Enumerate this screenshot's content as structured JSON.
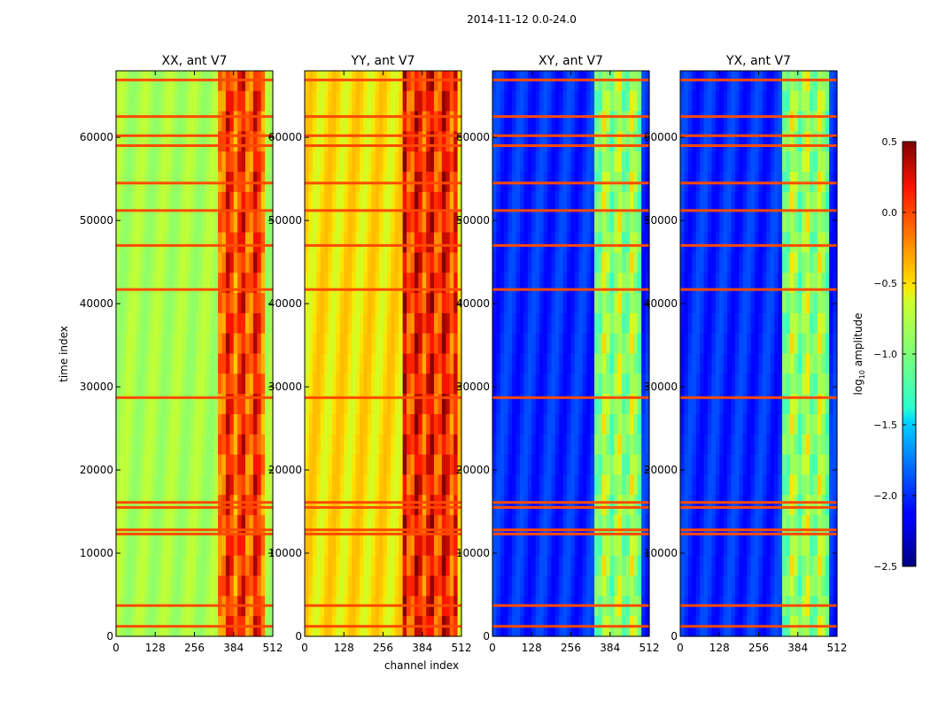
{
  "figure": {
    "suptitle": "2014-11-12 0.0-24.0",
    "xlabel": "channel index",
    "ylabel": "time index",
    "colorbar_label": "log",
    "colorbar_label_sub": "10",
    "colorbar_label_tail": " amplitude"
  },
  "chart_data": [
    {
      "type": "heatmap",
      "title": "XX, ant V7",
      "colormap": "jet",
      "xlim": [
        0,
        512
      ],
      "ylim": [
        0,
        68000
      ],
      "xticks": [
        0,
        128,
        256,
        384,
        512
      ],
      "yticks": [
        0,
        10000,
        20000,
        30000,
        40000,
        50000,
        60000
      ],
      "base_log_amplitude": -0.8,
      "active_channel_range": [
        330,
        480
      ],
      "active_log_amplitude": 0.0,
      "flagged_time_rows": [
        1200,
        3700,
        12300,
        12800,
        15500,
        16100,
        28700,
        41700,
        47000,
        51200,
        54500,
        59000,
        60200,
        62500,
        66900
      ]
    },
    {
      "type": "heatmap",
      "title": "YY, ant V7",
      "colormap": "jet",
      "xlim": [
        0,
        512
      ],
      "ylim": [
        0,
        68000
      ],
      "xticks": [
        0,
        128,
        256,
        384,
        512
      ],
      "yticks": [
        0,
        10000,
        20000,
        30000,
        40000,
        50000,
        60000
      ],
      "base_log_amplitude": -0.5,
      "active_channel_range": [
        325,
        500
      ],
      "active_log_amplitude": 0.1,
      "flagged_time_rows": [
        1200,
        3700,
        12300,
        12800,
        15500,
        16100,
        28700,
        41700,
        47000,
        51200,
        54500,
        59000,
        60200,
        62500,
        66900
      ]
    },
    {
      "type": "heatmap",
      "title": "XY, ant V7",
      "colormap": "jet",
      "xlim": [
        0,
        512
      ],
      "ylim": [
        0,
        68000
      ],
      "xticks": [
        0,
        128,
        256,
        384,
        512
      ],
      "yticks": [
        0,
        10000,
        20000,
        30000,
        40000,
        50000,
        60000
      ],
      "base_log_amplitude": -2.0,
      "active_channel_range": [
        330,
        490
      ],
      "active_log_amplitude": -0.9,
      "flagged_time_rows": [
        1200,
        3700,
        12300,
        12800,
        15500,
        16100,
        28700,
        41700,
        47000,
        51200,
        54500,
        59000,
        60200,
        62500,
        66900
      ]
    },
    {
      "type": "heatmap",
      "title": "YX, ant V7",
      "colormap": "jet",
      "xlim": [
        0,
        512
      ],
      "ylim": [
        0,
        68000
      ],
      "xticks": [
        0,
        128,
        256,
        384,
        512
      ],
      "yticks": [
        0,
        10000,
        20000,
        30000,
        40000,
        50000,
        60000
      ],
      "base_log_amplitude": -2.0,
      "active_channel_range": [
        330,
        490
      ],
      "active_log_amplitude": -0.9,
      "flagged_time_rows": [
        1200,
        3700,
        12300,
        12800,
        15500,
        16100,
        28700,
        41700,
        47000,
        51200,
        54500,
        59000,
        60200,
        62500,
        66900
      ]
    }
  ],
  "colorbar": {
    "colormap": "jet",
    "range": [
      -2.5,
      0.5
    ],
    "ticks": [
      0.5,
      0.0,
      -0.5,
      -1.0,
      -1.5,
      -2.0,
      -2.5
    ],
    "tick_labels": [
      "0.5",
      "0.0",
      "−0.5",
      "−1.0",
      "−1.5",
      "−2.0",
      "−2.5"
    ]
  }
}
